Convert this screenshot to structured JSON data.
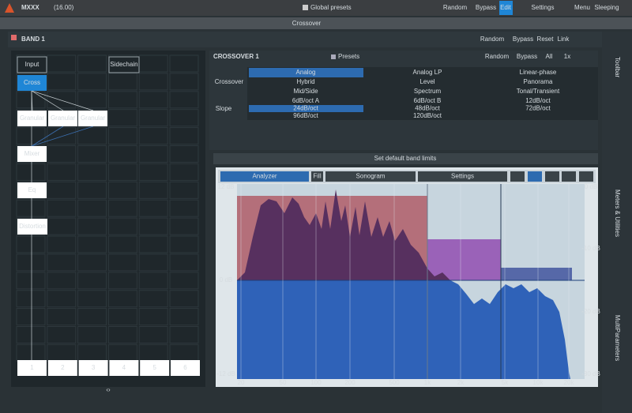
{
  "top_bar": {
    "logo": "MXXX",
    "version": "(16.00)",
    "global_presets": "Global presets",
    "buttons": [
      "Random",
      "Bypass",
      "Edit",
      "Settings",
      "Menu"
    ],
    "status": "Sleeping"
  },
  "section_title": "Crossover",
  "band_bar": {
    "title": "BAND 1",
    "buttons": [
      "Random",
      "Bypass",
      "Reset",
      "Link"
    ]
  },
  "routing": {
    "nodes": [
      {
        "label": "Input"
      },
      {
        "label": "Sidechain"
      },
      {
        "label": "Cross",
        "selected": true
      },
      {
        "label": "Granular"
      },
      {
        "label": "Granular"
      },
      {
        "label": "Granular"
      },
      {
        "label": "Mixer"
      },
      {
        "label": "Eq"
      },
      {
        "label": "Distortion"
      }
    ],
    "slots": [
      "1",
      "2",
      "3",
      "4",
      "5",
      "6"
    ],
    "footer_toggle": "‹›"
  },
  "crossover_panel": {
    "title": "CROSSOVER 1",
    "presets": "Presets",
    "buttons": [
      "Random",
      "Bypass",
      "All",
      "1x"
    ],
    "crossover_label": "Crossover",
    "slope_label": "Slope",
    "modes": [
      {
        "label": "Analog",
        "selected": true
      },
      {
        "label": "Analog LP"
      },
      {
        "label": "Linear-phase"
      },
      {
        "label": "Hybrid"
      },
      {
        "label": "Level"
      },
      {
        "label": "Panorama"
      },
      {
        "label": "Mid/Side"
      },
      {
        "label": "Spectrum"
      },
      {
        "label": "Tonal/Transient"
      }
    ],
    "slopes": [
      {
        "label": "6dB/oct A"
      },
      {
        "label": "6dB/oct B"
      },
      {
        "label": "12dB/oct"
      },
      {
        "label": "24dB/oct",
        "selected": true
      },
      {
        "label": "48dB/oct"
      },
      {
        "label": "72dB/oct"
      },
      {
        "label": "96dB/oct"
      },
      {
        "label": "120dB/oct"
      }
    ]
  },
  "default_limits": "Set default band limits",
  "analyzer": {
    "tabs": [
      "Analyzer",
      "Fill",
      "Sonogram",
      "Settings"
    ],
    "left_axis": [
      "12 dB",
      "0 dB",
      "-12 dB"
    ],
    "right_axis": [
      "0 dB",
      "-10 dB",
      "-20 dB",
      "-30 dB"
    ],
    "freq_axis": [
      "20",
      "50",
      "100",
      "200",
      "500",
      "1k",
      "2k",
      "5k",
      "10k",
      "20k"
    ]
  },
  "side_tabs": [
    "Toolbar",
    "Meters & Utilities",
    "MultiParameters"
  ]
}
